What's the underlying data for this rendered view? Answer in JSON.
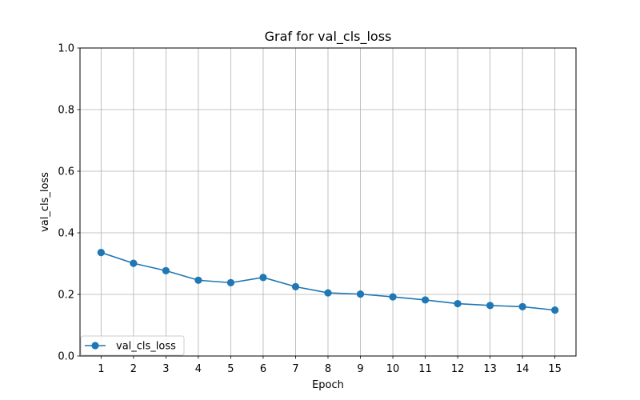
{
  "chart_data": {
    "type": "line",
    "title": "Graf for val_cls_loss",
    "xlabel": "Epoch",
    "ylabel": "val_cls_loss",
    "x": [
      1,
      2,
      3,
      4,
      5,
      6,
      7,
      8,
      9,
      10,
      11,
      12,
      13,
      14,
      15
    ],
    "xticks": [
      "1",
      "2",
      "3",
      "4",
      "5",
      "6",
      "7",
      "8",
      "9",
      "10",
      "11",
      "12",
      "13",
      "14",
      "15"
    ],
    "yticks": [
      "0.0",
      "0.2",
      "0.4",
      "0.6",
      "0.8",
      "1.0"
    ],
    "ylim": [
      0,
      1
    ],
    "grid": true,
    "legend_position": "lower-left",
    "series": [
      {
        "name": "val_cls_loss",
        "color": "#1f77b4",
        "marker": "circle",
        "values": [
          0.336,
          0.301,
          0.277,
          0.246,
          0.238,
          0.255,
          0.225,
          0.205,
          0.201,
          0.192,
          0.182,
          0.17,
          0.164,
          0.16,
          0.149
        ]
      }
    ]
  }
}
